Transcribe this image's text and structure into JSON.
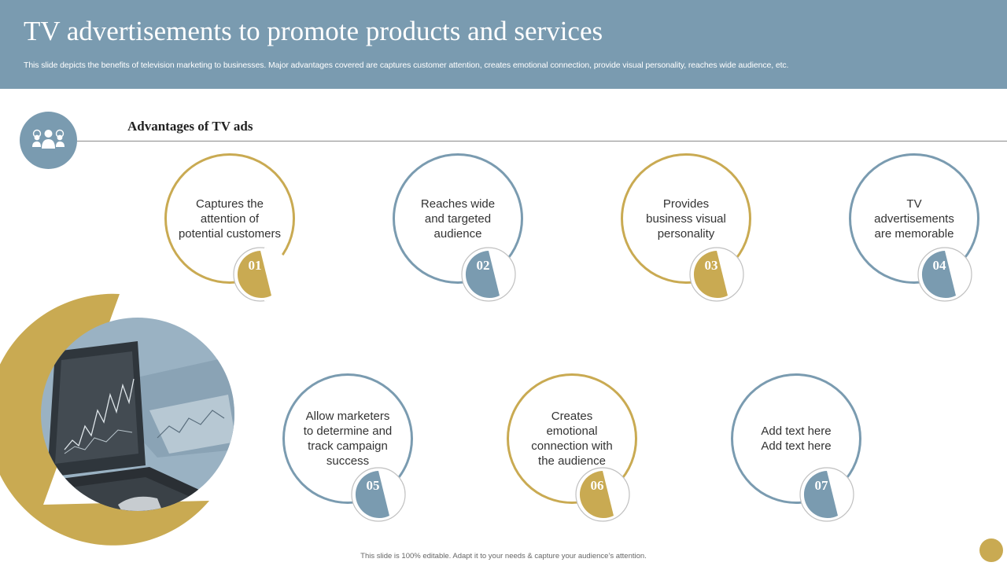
{
  "header": {
    "title": "TV advertisements to promote products and services",
    "subtitle": "This slide depicts the benefits of television marketing to businesses. Major advantages covered are captures customer attention, creates emotional connection, provide visual personality, reaches wide audience, etc."
  },
  "section": {
    "heading": "Advantages of TV ads",
    "icon": "people-settings-icon"
  },
  "advantages": [
    {
      "number": "01",
      "line1": "Captures the",
      "line2": "attention of",
      "line3": "potential customers",
      "line4": ""
    },
    {
      "number": "02",
      "line1": "Reaches wide",
      "line2": "and targeted",
      "line3": "audience",
      "line4": ""
    },
    {
      "number": "03",
      "line1": "Provides",
      "line2": "business visual",
      "line3": "personality",
      "line4": ""
    },
    {
      "number": "04",
      "line1": "TV",
      "line2": "advertisements",
      "line3": "are memorable",
      "line4": ""
    },
    {
      "number": "05",
      "line1": "Allow marketers",
      "line2": "to determine and",
      "line3": "track campaign",
      "line4": "success"
    },
    {
      "number": "06",
      "line1": "Creates",
      "line2": "emotional",
      "line3": "connection with",
      "line4": "the audience"
    },
    {
      "number": "07",
      "line1": "Add text here",
      "line2": "Add text here",
      "line3": "",
      "line4": ""
    }
  ],
  "footer": {
    "note": "This slide is 100% editable. Adapt it to your needs & capture your audience’s attention."
  },
  "colors": {
    "accent_blue": "#7a9bb0",
    "accent_gold": "#c9aa52"
  }
}
